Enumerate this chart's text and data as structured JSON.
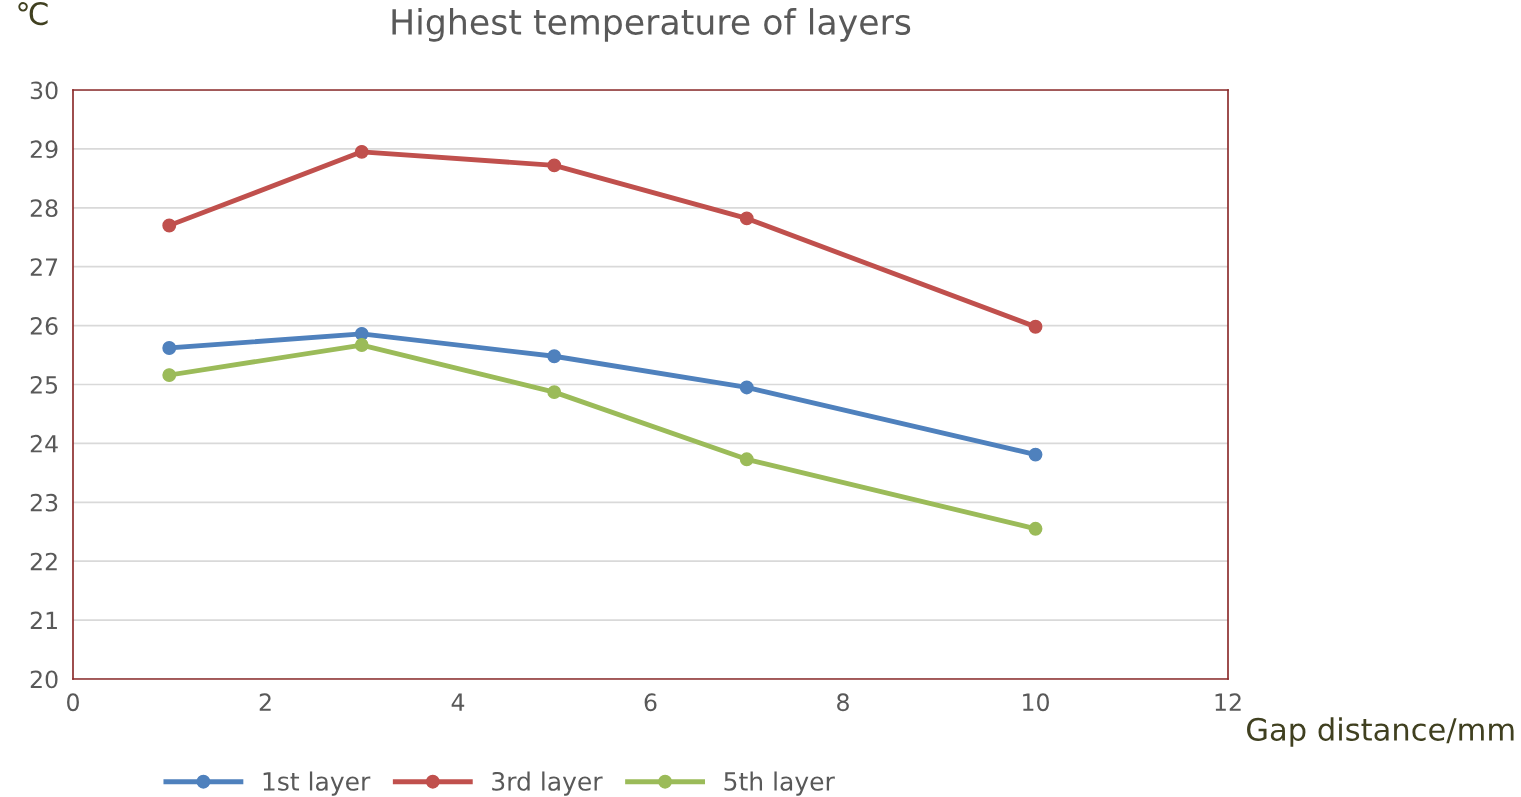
{
  "chart_data": {
    "type": "line",
    "title": "Highest temperature of layers",
    "xlabel": "Gap distance/mm",
    "ylabel": "℃",
    "x": [
      1,
      3,
      5,
      7,
      10
    ],
    "series": [
      {
        "name": "1st layer",
        "color": "#4f81bd",
        "values": [
          25.62,
          25.86,
          25.48,
          24.95,
          23.81
        ]
      },
      {
        "name": "3rd layer",
        "color": "#c0504d",
        "values": [
          27.7,
          28.95,
          28.72,
          27.82,
          25.98
        ]
      },
      {
        "name": "5th layer",
        "color": "#9bbb59",
        "values": [
          25.16,
          25.67,
          24.87,
          23.73,
          22.55
        ]
      }
    ],
    "xlim": [
      0,
      12
    ],
    "xticks": [
      0,
      2,
      4,
      6,
      8,
      10,
      12
    ],
    "ylim": [
      20,
      30
    ],
    "yticks": [
      20,
      21,
      22,
      23,
      24,
      25,
      26,
      27,
      28,
      29,
      30
    ],
    "grid": "y",
    "legend": "bottom",
    "marker": "circle",
    "line_style": "solid"
  }
}
